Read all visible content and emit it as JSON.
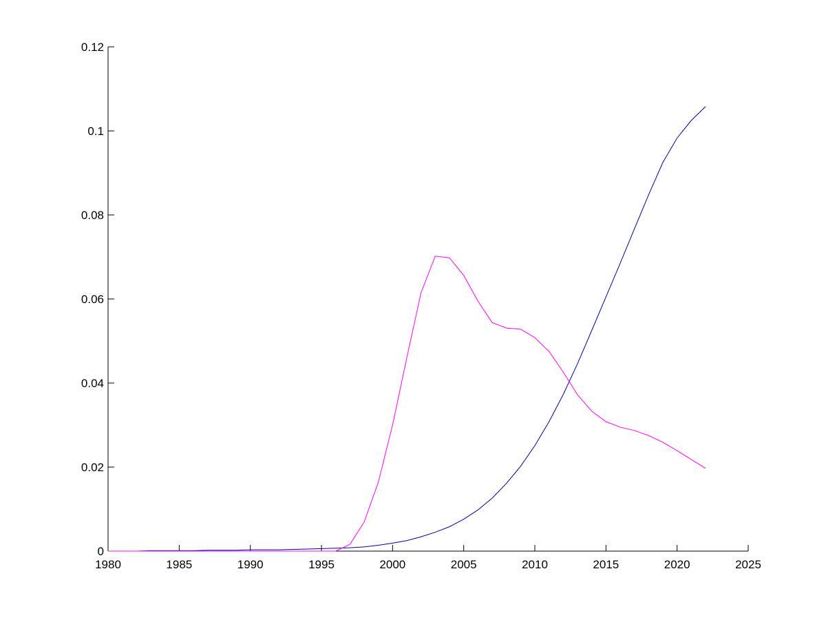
{
  "chart_data": {
    "type": "line",
    "x": [
      1980,
      1981,
      1982,
      1983,
      1984,
      1985,
      1986,
      1987,
      1988,
      1989,
      1990,
      1991,
      1992,
      1993,
      1994,
      1995,
      1996,
      1997,
      1998,
      1999,
      2000,
      2001,
      2002,
      2003,
      2004,
      2005,
      2006,
      2007,
      2008,
      2009,
      2010,
      2011,
      2012,
      2013,
      2014,
      2015,
      2016,
      2017,
      2018,
      2019,
      2020,
      2021,
      2022
    ],
    "series": [
      {
        "color": "#0000a0",
        "values": [
          0,
          0,
          0,
          0.0001,
          0.0001,
          0.0001,
          0.0001,
          0.0002,
          0.0002,
          0.0002,
          0.0003,
          0.0003,
          0.0003,
          0.0004,
          0.0005,
          0.0006,
          0.0007,
          0.0008,
          0.001,
          0.0014,
          0.0019,
          0.0025,
          0.0034,
          0.0045,
          0.0058,
          0.0076,
          0.0098,
          0.0126,
          0.0161,
          0.0202,
          0.0251,
          0.0308,
          0.0373,
          0.0446,
          0.0525,
          0.0605,
          0.0685,
          0.0767,
          0.0848,
          0.0925,
          0.0983,
          0.1025,
          0.1058
        ]
      },
      {
        "color": "#ff00ff",
        "values": [
          0,
          0,
          0,
          0,
          0,
          0,
          0,
          0,
          0,
          0,
          0,
          0,
          0,
          0,
          0,
          0,
          0,
          0.0016,
          0.0069,
          0.0164,
          0.03,
          0.046,
          0.0615,
          0.0702,
          0.0698,
          0.0656,
          0.0595,
          0.0544,
          0.0531,
          0.0528,
          0.0508,
          0.0475,
          0.0426,
          0.0372,
          0.0333,
          0.0308,
          0.0295,
          0.0287,
          0.0275,
          0.0259,
          0.0239,
          0.0218,
          0.0197
        ]
      }
    ],
    "xlim": [
      1980,
      2025
    ],
    "xticks": [
      1980,
      1985,
      1990,
      1995,
      2000,
      2005,
      2010,
      2015,
      2020,
      2025
    ],
    "ylim": [
      0,
      0.12
    ],
    "yticks": [
      0,
      0.02,
      0.04,
      0.06,
      0.08,
      0.1,
      0.12
    ]
  }
}
